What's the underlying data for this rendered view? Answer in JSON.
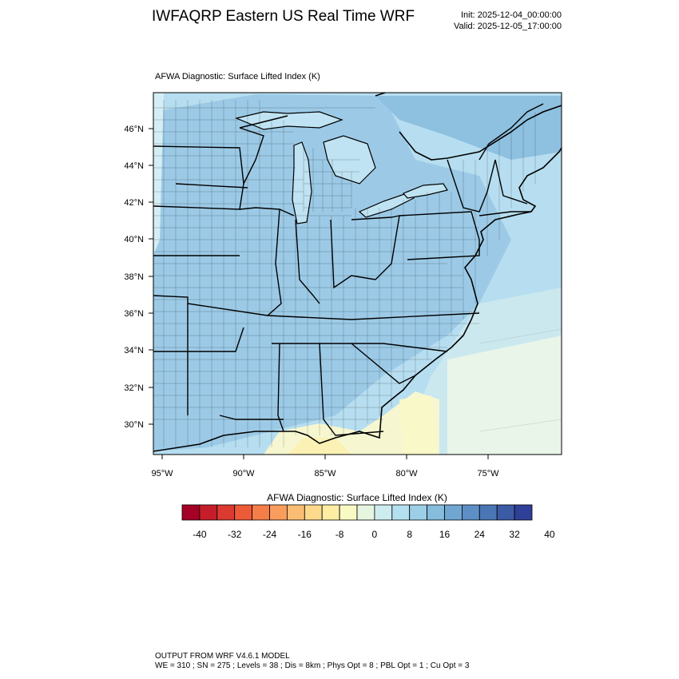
{
  "header": {
    "title": "IWFAQRP Eastern US Real Time WRF",
    "init": "Init: 2025-12-04_00:00:00",
    "valid": "Valid: 2025-12-05_17:00:00"
  },
  "panel": {
    "title": "AFWA Diagnostic: Surface Lifted Index   (K)"
  },
  "map": {
    "lat_labels": [
      "46°N",
      "44°N",
      "42°N",
      "40°N",
      "38°N",
      "36°N",
      "34°N",
      "32°N",
      "30°N"
    ],
    "lon_labels": [
      "95°W",
      "90°W",
      "85°W",
      "80°W",
      "75°W"
    ]
  },
  "colorbar": {
    "title": "AFWA Diagnostic: Surface Lifted Index  (K)",
    "labels": [
      "-40",
      "-32",
      "-24",
      "-16",
      "-8",
      "0",
      "8",
      "16",
      "24",
      "32",
      "40"
    ],
    "colors": [
      "#a50026",
      "#c51d2a",
      "#da3a2f",
      "#ec5a38",
      "#f57d4a",
      "#f99d5c",
      "#fbbd73",
      "#fdd98b",
      "#fdeea4",
      "#f9f9c4",
      "#e6f5e0",
      "#cdecef",
      "#b3e0ee",
      "#9ccfe5",
      "#86bcdc",
      "#70a7d2",
      "#5d8fc4",
      "#4a76b4",
      "#3b5ba5",
      "#303f97"
    ]
  },
  "footer": {
    "line1": "OUTPUT FROM WRF V4.6.1 MODEL",
    "line2": "WE = 310 ; SN = 275 ; Levels = 38 ; Dis = 8km ; Phys Opt = 8 ; PBL Opt = 1 ; Cu Opt = 3"
  }
}
